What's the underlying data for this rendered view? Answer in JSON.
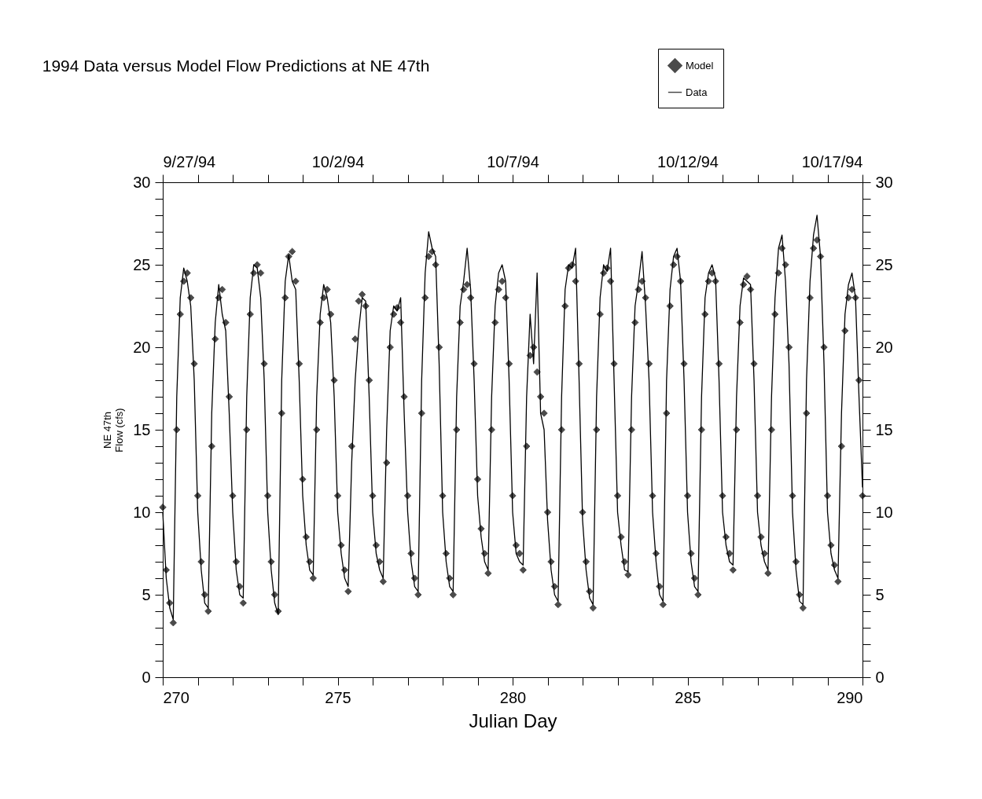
{
  "chart_data": {
    "type": "line",
    "title": "1994 Data versus Model Flow Predictions at NE 47th",
    "xlabel": "Julian Day",
    "ylabel": "NE 47th\nFlow (cfs)",
    "x": [
      270,
      270.1,
      270.2,
      270.3,
      270.4,
      270.5,
      270.6,
      270.7,
      270.8,
      270.9,
      271,
      271.1,
      271.2,
      271.3,
      271.4,
      271.5,
      271.6,
      271.7,
      271.8,
      271.9,
      272,
      272.1,
      272.2,
      272.3,
      272.4,
      272.5,
      272.6,
      272.7,
      272.8,
      272.9,
      273,
      273.1,
      273.2,
      273.3,
      273.4,
      273.5,
      273.6,
      273.7,
      273.8,
      273.9,
      274,
      274.1,
      274.2,
      274.3,
      274.4,
      274.5,
      274.6,
      274.7,
      274.8,
      274.9,
      275,
      275.1,
      275.2,
      275.3,
      275.4,
      275.5,
      275.6,
      275.7,
      275.8,
      275.9,
      276,
      276.1,
      276.2,
      276.3,
      276.4,
      276.5,
      276.6,
      276.7,
      276.8,
      276.9,
      277,
      277.1,
      277.2,
      277.3,
      277.4,
      277.5,
      277.6,
      277.7,
      277.8,
      277.9,
      278,
      278.1,
      278.2,
      278.3,
      278.4,
      278.5,
      278.6,
      278.7,
      278.8,
      278.9,
      279,
      279.1,
      279.2,
      279.3,
      279.4,
      279.5,
      279.6,
      279.7,
      279.8,
      279.9,
      280,
      280.1,
      280.2,
      280.3,
      280.4,
      280.5,
      280.6,
      280.7,
      280.8,
      280.9,
      281,
      281.1,
      281.2,
      281.3,
      281.4,
      281.5,
      281.6,
      281.7,
      281.8,
      281.9,
      282,
      282.1,
      282.2,
      282.3,
      282.4,
      282.5,
      282.6,
      282.7,
      282.8,
      282.9,
      283,
      283.1,
      283.2,
      283.3,
      283.4,
      283.5,
      283.6,
      283.7,
      283.8,
      283.9,
      284,
      284.1,
      284.2,
      284.3,
      284.4,
      284.5,
      284.6,
      284.7,
      284.8,
      284.9,
      285,
      285.1,
      285.2,
      285.3,
      285.4,
      285.5,
      285.6,
      285.7,
      285.8,
      285.9,
      286,
      286.1,
      286.2,
      286.3,
      286.4,
      286.5,
      286.6,
      286.7,
      286.8,
      286.9,
      287,
      287.1,
      287.2,
      287.3,
      287.4,
      287.5,
      287.6,
      287.7,
      287.8,
      287.9,
      288,
      288.1,
      288.2,
      288.3,
      288.4,
      288.5,
      288.6,
      288.7,
      288.8,
      288.9,
      289,
      289.1,
      289.2,
      289.3,
      289.4,
      289.5,
      289.6,
      289.7,
      289.8,
      289.9,
      290
    ],
    "series": [
      {
        "name": "Model",
        "type": "scatter",
        "marker": "diamond",
        "color": "#000000",
        "values": [
          10.3,
          6.5,
          4.5,
          3.3,
          15,
          22,
          24,
          24.5,
          23,
          19,
          11,
          7,
          5,
          4,
          14,
          20.5,
          23,
          23.5,
          21.5,
          17,
          11,
          7,
          5.5,
          4.5,
          15,
          22,
          24.5,
          25,
          24.5,
          19,
          11,
          7,
          5,
          4,
          16,
          23,
          25.5,
          25.8,
          24,
          19,
          12,
          8.5,
          7,
          6,
          15,
          21.5,
          23,
          23.5,
          22,
          18,
          11,
          8,
          6.5,
          5.2,
          14,
          20.5,
          22.8,
          23.2,
          22.5,
          18,
          11,
          8,
          7,
          5.8,
          13,
          20,
          22,
          22.4,
          21.5,
          17,
          11,
          7.5,
          6,
          5,
          16,
          23,
          25.5,
          25.8,
          25,
          20,
          11,
          7.5,
          6,
          5,
          15,
          21.5,
          23.5,
          23.8,
          23,
          19,
          12,
          9,
          7.5,
          6.3,
          15,
          21.5,
          23.5,
          24,
          23,
          19,
          11,
          8,
          7.5,
          6.5,
          14,
          19.5,
          20,
          18.5,
          17,
          16,
          10,
          7,
          5.5,
          4.4,
          15,
          22.5,
          24.8,
          25,
          24,
          19,
          10,
          7,
          5.2,
          4.2,
          15,
          22,
          24.5,
          24.8,
          24,
          19,
          11,
          8.5,
          7,
          6.2,
          15,
          21.5,
          23.5,
          24,
          23,
          19,
          11,
          7.5,
          5.5,
          4.4,
          16,
          22.5,
          25,
          25.5,
          24,
          19,
          11,
          7.5,
          6,
          5,
          15,
          22,
          24,
          24.5,
          24,
          19,
          11,
          8.5,
          7.5,
          6.5,
          15,
          21.5,
          23.8,
          24.3,
          23.5,
          19,
          11,
          8.5,
          7.5,
          6.3,
          15,
          22,
          24.5,
          26,
          25,
          20,
          11,
          7,
          5,
          4.2,
          16,
          23,
          26,
          26.5,
          25.5,
          20,
          11,
          8,
          6.8,
          5.8,
          14,
          21,
          23,
          23.5,
          23,
          18,
          11
        ]
      },
      {
        "name": "Data",
        "color": "#000000",
        "values": [
          10,
          6,
          4.2,
          3.5,
          17,
          23,
          24.8,
          24,
          22.5,
          18,
          10,
          6.5,
          4.5,
          4.2,
          16,
          21.5,
          23.8,
          22,
          21,
          16,
          10,
          6.5,
          5,
          4.8,
          17,
          23,
          25,
          24.8,
          23,
          18,
          10,
          6.5,
          4.5,
          3.8,
          18,
          24,
          25.6,
          24,
          23.5,
          18,
          11,
          8,
          6.5,
          6.2,
          17,
          22,
          23.8,
          23,
          21.5,
          17,
          10,
          7.5,
          6,
          5.5,
          13,
          18,
          21,
          23,
          22.8,
          17,
          10,
          7.5,
          6.5,
          6,
          15,
          21,
          22.5,
          22.2,
          23,
          16,
          10,
          7,
          5.5,
          5.2,
          18,
          24.5,
          27,
          26,
          25.5,
          19,
          10,
          7,
          5.5,
          5.2,
          17,
          22.5,
          24,
          26,
          23.5,
          18,
          11,
          8.5,
          7,
          6.5,
          17,
          22.5,
          24.5,
          25,
          24,
          18,
          10,
          7.5,
          7,
          6.8,
          17,
          22,
          19,
          24.5,
          16,
          15,
          9.5,
          6.5,
          5,
          4.6,
          17,
          23.5,
          25,
          24.8,
          26,
          18,
          9.5,
          6.5,
          4.8,
          4.4,
          17,
          23,
          25,
          24.6,
          26,
          18,
          10,
          8,
          6.5,
          6.4,
          17,
          22.5,
          24,
          25.8,
          22.5,
          18,
          10,
          7,
          5,
          4.6,
          18,
          23.5,
          25.5,
          26,
          24,
          18,
          10,
          7,
          5.5,
          5.2,
          17,
          23,
          24.5,
          25,
          24.2,
          18,
          10,
          8,
          7,
          6.8,
          17,
          22.5,
          24.2,
          24,
          23.8,
          18,
          10,
          8,
          7,
          6.5,
          17,
          23,
          26,
          26.8,
          24,
          19,
          10,
          6.5,
          4.6,
          4.4,
          18,
          24,
          26.8,
          28,
          25.5,
          19,
          10,
          7.5,
          6.5,
          6,
          16,
          22,
          23.8,
          24.5,
          23,
          17,
          11.5
        ]
      }
    ],
    "line_style": "solid",
    "legend": "top right",
    "grid": false,
    "xlim": [
      270,
      290
    ],
    "xticks": [
      270,
      {
        "value": 271,
        "label": null
      },
      {
        "value": 272,
        "label": null
      },
      {
        "value": 273,
        "label": null
      },
      {
        "value": 274,
        "label": null
      },
      275,
      {
        "value": 276,
        "label": null
      },
      {
        "value": 277,
        "label": null
      },
      {
        "value": 278,
        "label": null
      },
      {
        "value": 279,
        "label": null
      },
      280,
      {
        "value": 281,
        "label": null
      },
      {
        "value": 282,
        "label": null
      },
      {
        "value": 283,
        "label": null
      },
      {
        "value": 284,
        "label": null
      },
      285,
      {
        "value": 286,
        "label": null
      },
      {
        "value": 287,
        "label": null
      },
      {
        "value": 288,
        "label": null
      },
      {
        "value": 289,
        "label": null
      },
      290
    ],
    "x2lim": [
      "1994-09-27",
      "1994-10-17"
    ],
    "x2ticks": [
      {
        "value": "1994-09-27",
        "label": "9/27/94"
      },
      {
        "value": "1994-09-28",
        "label": null
      },
      {
        "value": "1994-09-29",
        "label": null
      },
      {
        "value": "1994-09-30",
        "label": null
      },
      {
        "value": "1994-10-01",
        "label": null
      },
      {
        "value": "1994-10-02",
        "label": "10/2/94"
      },
      {
        "value": "1994-10-03",
        "label": null
      },
      {
        "value": "1994-10-04",
        "label": null
      },
      {
        "value": "1994-10-05",
        "label": null
      },
      {
        "value": "1994-10-06",
        "label": null
      },
      {
        "value": "1994-10-07",
        "label": "10/7/94"
      },
      {
        "value": "1994-10-08",
        "label": null
      },
      {
        "value": "1994-10-09",
        "label": null
      },
      {
        "value": "1994-10-10",
        "label": null
      },
      {
        "value": "1994-10-11",
        "label": null
      },
      {
        "value": "1994-10-12",
        "label": "10/12/94"
      },
      {
        "value": "1994-10-13",
        "label": null
      },
      {
        "value": "1994-10-14",
        "label": null
      },
      {
        "value": "1994-10-15",
        "label": null
      },
      {
        "value": "1994-10-16",
        "label": null
      },
      {
        "value": "1994-10-17",
        "label": "10/17/94"
      }
    ],
    "ylim": [
      0,
      30
    ],
    "yticks": [
      0,
      {
        "value": 1,
        "label": null
      },
      {
        "value": 2,
        "label": null
      },
      {
        "value": 3,
        "label": null
      },
      {
        "value": 4,
        "label": null
      },
      5,
      {
        "value": 6,
        "label": null
      },
      {
        "value": 7,
        "label": null
      },
      {
        "value": 8,
        "label": null
      },
      {
        "value": 9,
        "label": null
      },
      10,
      {
        "value": 11,
        "label": null
      },
      {
        "value": 12,
        "label": null
      },
      {
        "value": 13,
        "label": null
      },
      {
        "value": 14,
        "label": null
      },
      15,
      {
        "value": 16,
        "label": null
      },
      {
        "value": 17,
        "label": null
      },
      {
        "value": 18,
        "label": null
      },
      {
        "value": 19,
        "label": null
      },
      20,
      {
        "value": 21,
        "label": null
      },
      {
        "value": 22,
        "label": null
      },
      {
        "value": 23,
        "label": null
      },
      {
        "value": 24,
        "label": null
      },
      25,
      {
        "value": 26,
        "label": null
      },
      {
        "value": 27,
        "label": null
      },
      {
        "value": 28,
        "label": null
      },
      {
        "value": 29,
        "label": null
      },
      30
    ],
    "y2lim": [
      0,
      30
    ],
    "y2ticks": [
      0,
      {
        "value": 1,
        "label": null
      },
      {
        "value": 2,
        "label": null
      },
      {
        "value": 3,
        "label": null
      },
      {
        "value": 4,
        "label": null
      },
      5,
      {
        "value": 6,
        "label": null
      },
      {
        "value": 7,
        "label": null
      },
      {
        "value": 8,
        "label": null
      },
      {
        "value": 9,
        "label": null
      },
      10,
      {
        "value": 11,
        "label": null
      },
      {
        "value": 12,
        "label": null
      },
      {
        "value": 13,
        "label": null
      },
      {
        "value": 14,
        "label": null
      },
      15,
      {
        "value": 16,
        "label": null
      },
      {
        "value": 17,
        "label": null
      },
      {
        "value": 18,
        "label": null
      },
      {
        "value": 19,
        "label": null
      },
      20,
      {
        "value": 21,
        "label": null
      },
      {
        "value": 22,
        "label": null
      },
      {
        "value": 23,
        "label": null
      },
      {
        "value": 24,
        "label": null
      },
      25,
      {
        "value": 26,
        "label": null
      },
      {
        "value": 27,
        "label": null
      },
      {
        "value": 28,
        "label": null
      },
      {
        "value": 29,
        "label": null
      },
      30
    ]
  }
}
